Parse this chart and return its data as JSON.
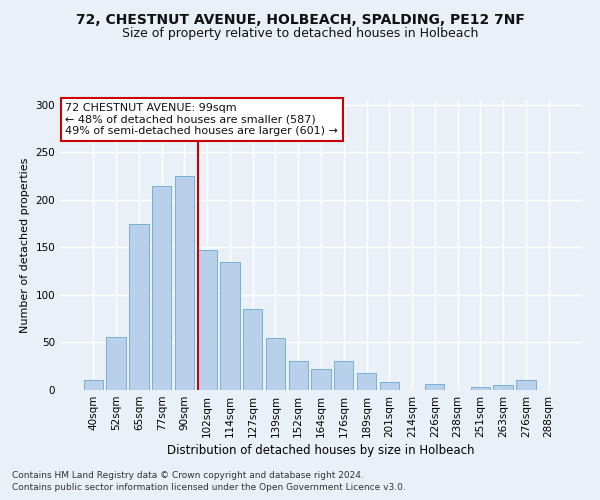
{
  "title": "72, CHESTNUT AVENUE, HOLBEACH, SPALDING, PE12 7NF",
  "subtitle": "Size of property relative to detached houses in Holbeach",
  "xlabel": "Distribution of detached houses by size in Holbeach",
  "ylabel": "Number of detached properties",
  "categories": [
    "40sqm",
    "52sqm",
    "65sqm",
    "77sqm",
    "90sqm",
    "102sqm",
    "114sqm",
    "127sqm",
    "139sqm",
    "152sqm",
    "164sqm",
    "176sqm",
    "189sqm",
    "201sqm",
    "214sqm",
    "226sqm",
    "238sqm",
    "251sqm",
    "263sqm",
    "276sqm",
    "288sqm"
  ],
  "values": [
    10,
    56,
    175,
    215,
    225,
    147,
    135,
    85,
    55,
    30,
    22,
    30,
    18,
    8,
    0,
    6,
    0,
    3,
    5,
    10,
    0
  ],
  "bar_color": "#b8d0ea",
  "bar_edge_color": "#7aafd4",
  "vline_color": "#cc0000",
  "annotation_text": "72 CHESTNUT AVENUE: 99sqm\n← 48% of detached houses are smaller (587)\n49% of semi-detached houses are larger (601) →",
  "annotation_box_color": "#ffffff",
  "annotation_box_edge": "#cc0000",
  "footnote1": "Contains HM Land Registry data © Crown copyright and database right 2024.",
  "footnote2": "Contains public sector information licensed under the Open Government Licence v3.0.",
  "ylim": [
    0,
    305
  ],
  "yticks": [
    0,
    50,
    100,
    150,
    200,
    250,
    300
  ],
  "background_color": "#eaf0f8",
  "grid_color": "#ffffff",
  "title_fontsize": 10,
  "subtitle_fontsize": 9,
  "xlabel_fontsize": 8.5,
  "ylabel_fontsize": 8,
  "tick_fontsize": 7.5,
  "annotation_fontsize": 8,
  "footnote_fontsize": 6.5
}
